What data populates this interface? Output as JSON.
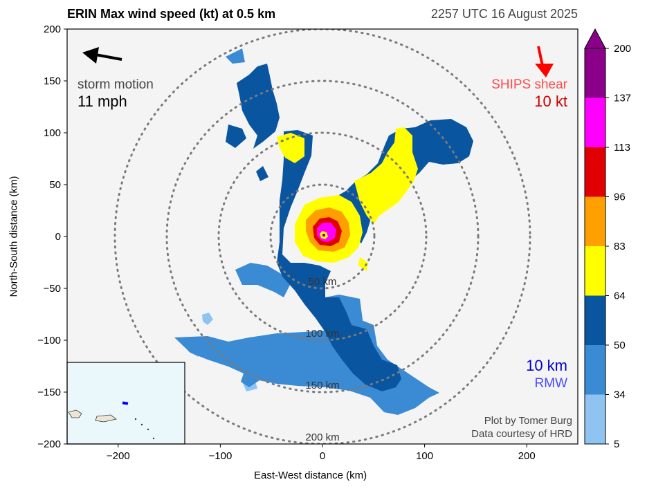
{
  "header": {
    "title": "ERIN Max wind speed (kt) at 0.5 km",
    "timestamp": "2257 UTC 16 August 2025"
  },
  "axes": {
    "xlabel": "East-West distance (km)",
    "ylabel": "North-South distance (km)"
  },
  "annotations": {
    "storm_motion_label": "storm motion",
    "storm_motion_value": "11 mph",
    "shear_label": "SHIPS shear",
    "shear_value": "10 kt",
    "rmw_value": "10 km",
    "rmw_label": "RMW",
    "credit_line1": "Plot by Tomer Burg",
    "credit_line2": "Data courtesy of HRD"
  },
  "colors": {
    "background_plot": "#f4f4f4",
    "ring": "#7a7a7a",
    "motion_arrow": "#000000",
    "shear_arrow": "#ff0000",
    "shear_label": "#ff4a4a",
    "shear_value": "#cc0000",
    "rmw_value": "#0000cc",
    "rmw_label": "#4a4aff",
    "inset_ocean": "#eaf8fc",
    "inset_marker": "#0000ff"
  },
  "chart_data": {
    "type": "heatmap",
    "title": "ERIN Max wind speed (kt) at 0.5 km",
    "xlabel": "East-West distance (km)",
    "ylabel": "North-South distance (km)",
    "xlim": [
      -250,
      250
    ],
    "ylim": [
      -200,
      200
    ],
    "xticks": [
      -200,
      -100,
      0,
      100,
      200
    ],
    "yticks": [
      -200,
      -150,
      -100,
      -50,
      0,
      50,
      100,
      150,
      200
    ],
    "xtick_labels": [
      "−200",
      "−100",
      "0",
      "100",
      "200"
    ],
    "ytick_labels": [
      "−200",
      "−150",
      "−100",
      "−50",
      "0",
      "50",
      "100",
      "150",
      "200"
    ],
    "range_rings_km": [
      50,
      100,
      150,
      200
    ],
    "range_ring_labels": [
      "50 km",
      "100 km",
      "150 km",
      "200 km"
    ],
    "colorbar": {
      "levels": [
        5,
        34,
        50,
        64,
        83,
        96,
        113,
        137,
        200
      ],
      "labels": [
        "5",
        "34",
        "50",
        "64",
        "83",
        "96",
        "113",
        "137",
        "200"
      ],
      "colors": [
        "#8ec3f2",
        "#3a8ad4",
        "#0a55a0",
        "#ffff00",
        "#ffa000",
        "#e00000",
        "#ff00ff",
        "#8b0089"
      ],
      "extend": "max"
    },
    "storm_motion": {
      "speed_mph": 11,
      "direction": "west-northwest"
    },
    "ships_shear": {
      "speed_kt": 10,
      "direction": "south-southeast"
    },
    "rmw_km": 10,
    "grid": false
  },
  "inset_map": {
    "label": ""
  }
}
